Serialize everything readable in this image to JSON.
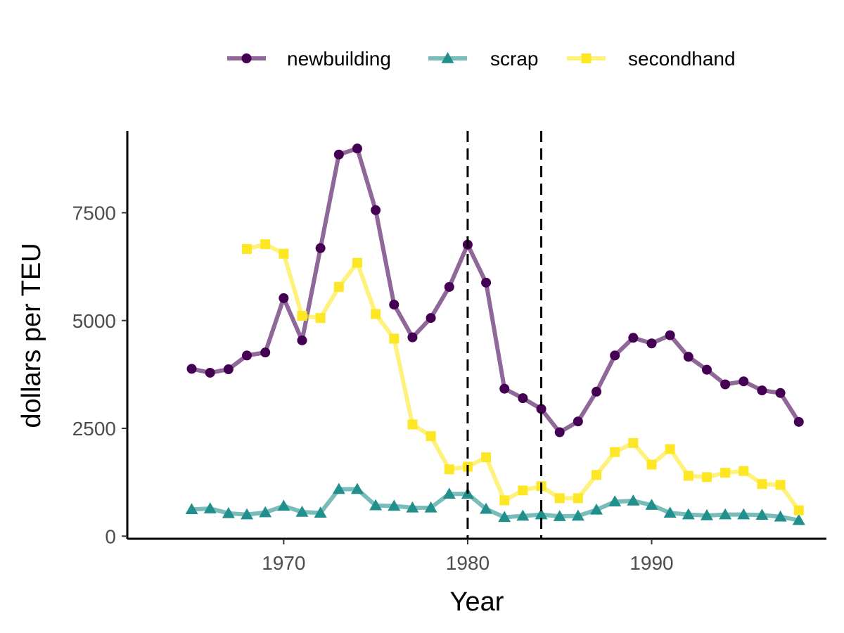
{
  "chart_data": {
    "type": "line",
    "xlabel": "Year",
    "ylabel": "dollars per TEU",
    "xlim": [
      1961.5,
      1999.5
    ],
    "ylim": [
      -60,
      9400
    ],
    "x_ticks": [
      1970,
      1980,
      1990
    ],
    "y_ticks": [
      0,
      2500,
      5000,
      7500
    ],
    "x_tick_labels": [
      "1970",
      "1980",
      "1990"
    ],
    "y_tick_labels": [
      "0",
      "2500",
      "5000",
      "7500"
    ],
    "legend_position": "top",
    "grid": false,
    "vlines": [
      1980,
      1984
    ],
    "series": [
      {
        "name": "newbuilding",
        "color": "#440154",
        "marker": "circle",
        "x": [
          1965,
          1966,
          1967,
          1968,
          1969,
          1970,
          1971,
          1972,
          1973,
          1974,
          1975,
          1976,
          1977,
          1978,
          1979,
          1980,
          1981,
          1982,
          1983,
          1984,
          1985,
          1986,
          1987,
          1988,
          1989,
          1990,
          1991,
          1992,
          1993,
          1994,
          1995,
          1996,
          1997,
          1998
        ],
        "values": [
          3880,
          3790,
          3870,
          4190,
          4260,
          5520,
          4540,
          6680,
          8850,
          8990,
          7560,
          5370,
          4610,
          5060,
          5780,
          6760,
          5880,
          3420,
          3200,
          2950,
          2410,
          2660,
          3350,
          4190,
          4600,
          4470,
          4660,
          4160,
          3860,
          3520,
          3590,
          3380,
          3320,
          2650
        ]
      },
      {
        "name": "scrap",
        "color": "#21908C",
        "marker": "triangle",
        "x": [
          1965,
          1966,
          1967,
          1968,
          1969,
          1970,
          1971,
          1972,
          1973,
          1974,
          1975,
          1976,
          1977,
          1978,
          1979,
          1980,
          1981,
          1982,
          1983,
          1984,
          1985,
          1986,
          1987,
          1988,
          1989,
          1990,
          1991,
          1992,
          1993,
          1994,
          1995,
          1996,
          1997,
          1998
        ],
        "values": [
          620,
          640,
          530,
          500,
          550,
          700,
          560,
          540,
          1090,
          1090,
          710,
          700,
          660,
          660,
          980,
          980,
          630,
          440,
          470,
          500,
          460,
          470,
          610,
          800,
          820,
          720,
          540,
          500,
          480,
          500,
          500,
          490,
          450,
          370
        ]
      },
      {
        "name": "secondhand",
        "color": "#FDE725",
        "marker": "square",
        "x": [
          1968,
          1969,
          1970,
          1971,
          1972,
          1973,
          1974,
          1975,
          1976,
          1977,
          1978,
          1979,
          1980,
          1981,
          1982,
          1983,
          1984,
          1985,
          1986,
          1987,
          1988,
          1989,
          1990,
          1991,
          1992,
          1993,
          1994,
          1995,
          1996,
          1997,
          1998
        ],
        "values": [
          6660,
          6770,
          6550,
          5110,
          5060,
          5780,
          6340,
          5150,
          4580,
          2590,
          2320,
          1550,
          1610,
          1830,
          830,
          1060,
          1160,
          880,
          880,
          1420,
          1950,
          2160,
          1660,
          2020,
          1400,
          1370,
          1470,
          1510,
          1210,
          1190,
          600
        ]
      }
    ]
  }
}
